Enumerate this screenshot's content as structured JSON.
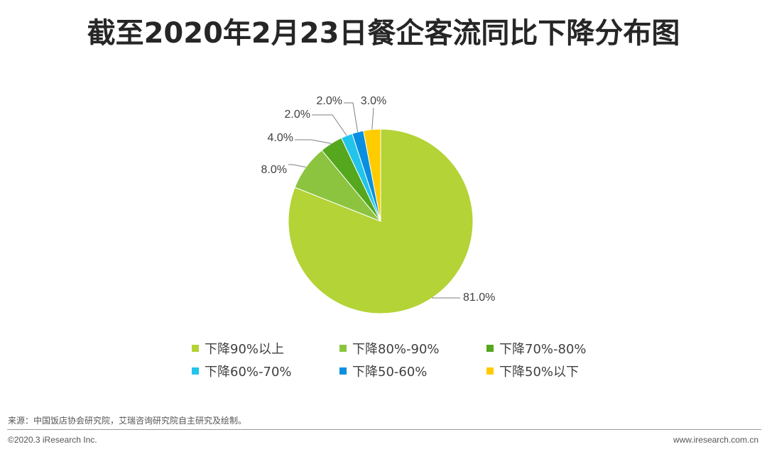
{
  "title": "截至2020年2月23日餐企客流同比下降分布图",
  "chart_data": {
    "type": "pie",
    "slices": [
      {
        "label": "下降90%以上",
        "value": 81.0,
        "value_label": "81.0%",
        "color": "#b3d336"
      },
      {
        "label": "下降80%-90%",
        "value": 8.0,
        "value_label": "8.0%",
        "color": "#8cc43f"
      },
      {
        "label": "下降70%-80%",
        "value": 4.0,
        "value_label": "4.0%",
        "color": "#55a71e"
      },
      {
        "label": "下降60%-70%",
        "value": 2.0,
        "value_label": "2.0%",
        "color": "#22c4ea"
      },
      {
        "label": "下降50-60%",
        "value": 2.0,
        "value_label": "2.0%",
        "color": "#0a8fe0"
      },
      {
        "label": "下降50%以下",
        "value": 3.0,
        "value_label": "3.0%",
        "color": "#ffcc00"
      }
    ],
    "legend_position": "bottom"
  },
  "footer": {
    "source": "来源：中国饭店协会研究院，艾瑞咨询研究院自主研究及绘制。",
    "copyright": "©2020.3 iResearch Inc.",
    "url": "www.iresearch.com.cn"
  }
}
